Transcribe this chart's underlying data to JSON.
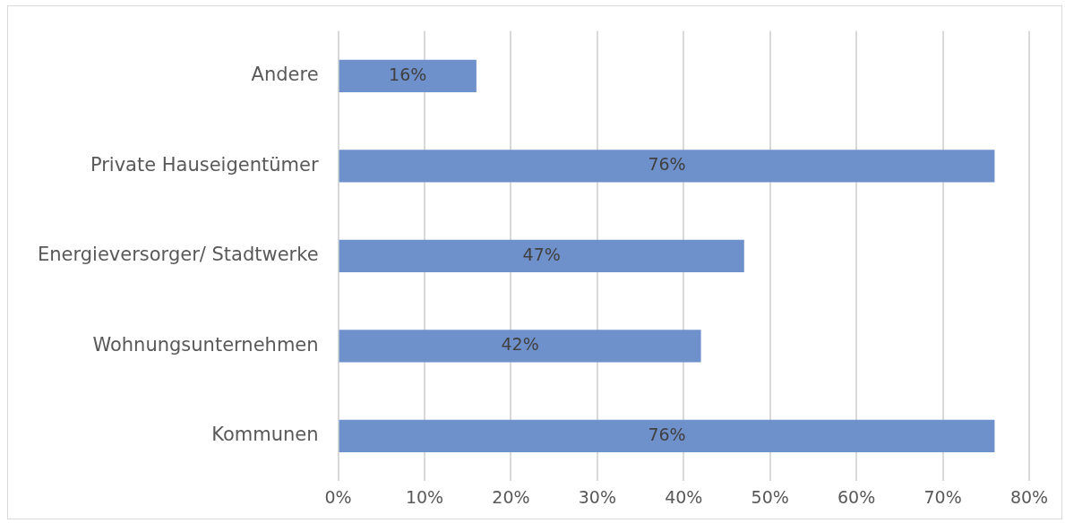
{
  "chart_data": {
    "type": "bar",
    "orientation": "horizontal",
    "categories": [
      "Andere",
      "Private Hauseigentümer",
      "Energieversorger/ Stadtwerke",
      "Wohnungsunternehmen",
      "Kommunen"
    ],
    "values": [
      16,
      76,
      47,
      42,
      76
    ],
    "color": "#6f91cb",
    "data_labels": true,
    "value_labels": [
      "16%",
      "76%",
      "47%",
      "42%",
      "76%"
    ],
    "xlim": [
      0,
      80
    ],
    "xticks": [
      {
        "value": 0,
        "label": "0%"
      },
      {
        "value": 10,
        "label": "10%"
      },
      {
        "value": 20,
        "label": "20%"
      },
      {
        "value": 30,
        "label": "30%"
      },
      {
        "value": 40,
        "label": "40%"
      },
      {
        "value": 50,
        "label": "50%"
      },
      {
        "value": 60,
        "label": "60%"
      },
      {
        "value": 70,
        "label": "70%"
      },
      {
        "value": 80,
        "label": "80%"
      }
    ],
    "grid": "x",
    "legend": false
  }
}
